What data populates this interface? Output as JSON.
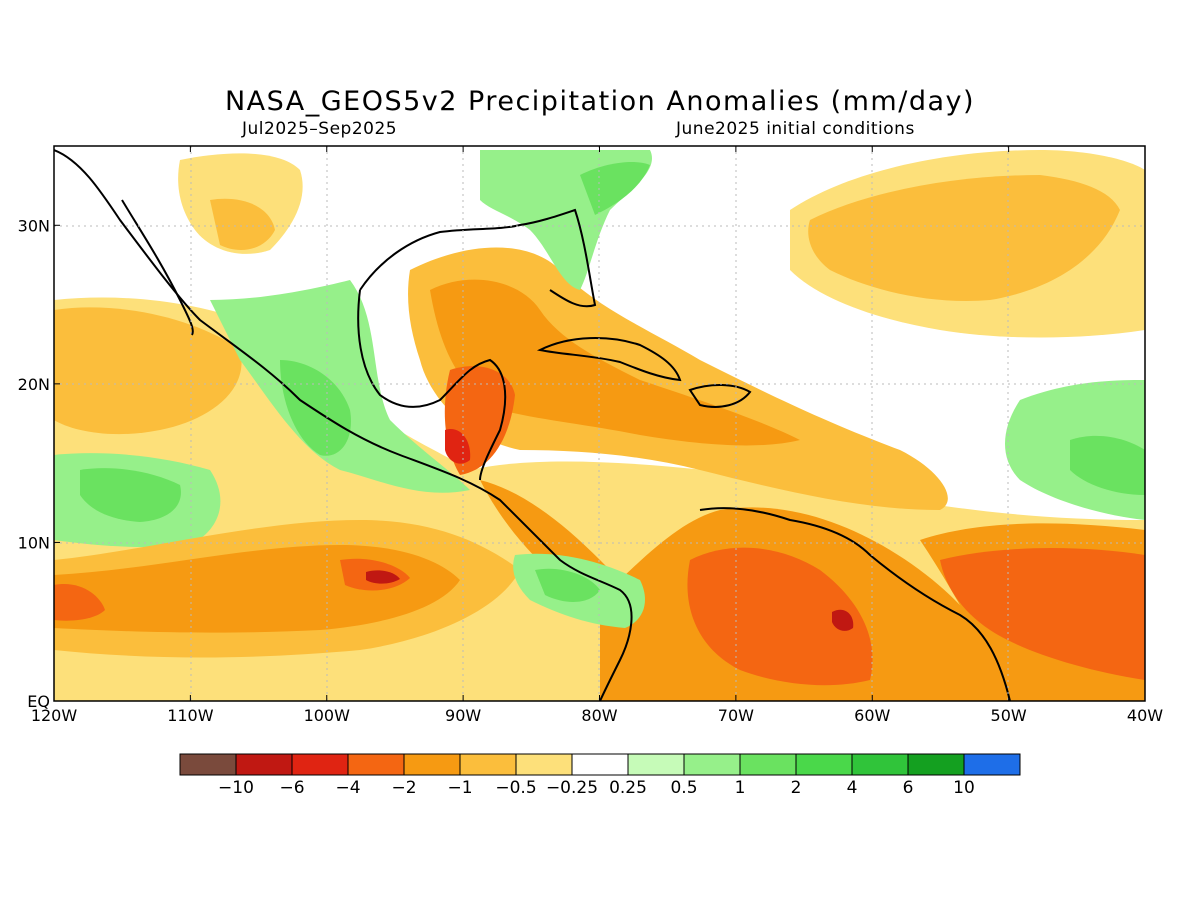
{
  "title": "NASA_GEOS5v2 Precipitation Anomalies (mm/day)",
  "period": "Jul2025–Sep2025",
  "initial_conditions": "June2025 initial conditions",
  "lon_labels": [
    "120W",
    "110W",
    "100W",
    "90W",
    "80W",
    "70W",
    "60W",
    "50W",
    "40W"
  ],
  "lat_labels": [
    "EQ",
    "10N",
    "20N",
    "30N"
  ],
  "extent": {
    "lon_min": -120,
    "lon_max": -40,
    "lat_min": 0,
    "lat_max": 35
  },
  "legend": {
    "colors": [
      "#7a4a3c",
      "#c01812",
      "#e02412",
      "#f46612",
      "#f69a12",
      "#fbbe3c",
      "#fde07a",
      "#ffffff",
      "#c6fbb8",
      "#96f08a",
      "#6ae260",
      "#4ad84a",
      "#30c43a",
      "#14a020",
      "#1e6ee8"
    ],
    "labels": [
      "−10",
      "−6",
      "−4",
      "−2",
      "−1",
      "−0.5",
      "−0.25",
      "0.25",
      "0.5",
      "1",
      "2",
      "4",
      "6",
      "10"
    ]
  },
  "colors": {
    "neg_strong": "#c01812",
    "neg_mod": "#f46612",
    "neg_weak": "#fbbe3c",
    "neg_slight": "#fde07a",
    "pos_slight": "#c6fbb8",
    "pos_weak": "#96f08a",
    "pos_mod": "#6ae260",
    "coast": "#000000"
  }
}
